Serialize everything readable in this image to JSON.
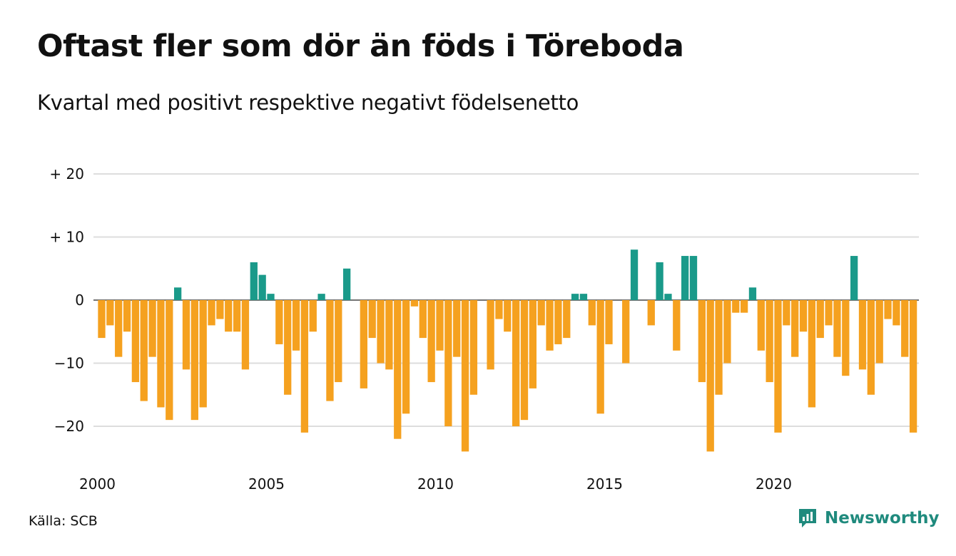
{
  "title": "Oftast fler som dör än föds i Töreboda",
  "subtitle": "Kvartal med positivt respektive negativt födelsenetto",
  "source": "Källa: SCB",
  "brand": "Newsworthy",
  "colors": {
    "positive": "#1a9a8a",
    "negative": "#f5a11f",
    "grid": "#dddddd",
    "brand": "#1f8a7d"
  },
  "chart_data": {
    "type": "bar",
    "title": "Oftast fler som dör än föds i Töreboda",
    "subtitle": "Kvartal med positivt respektive negativt födelsenetto",
    "xlabel": "",
    "ylabel": "",
    "x_start_year": 2000,
    "periods_per_year": 4,
    "x_tick_labels": [
      "2000",
      "2005",
      "2010",
      "2015",
      "2020"
    ],
    "x_tick_years": [
      2000,
      2005,
      2010,
      2015,
      2020
    ],
    "y_ticks": [
      20,
      10,
      0,
      -10,
      -20
    ],
    "y_tick_labels": [
      "+ 20",
      "+ 10",
      "0",
      "−10",
      "−20"
    ],
    "ylim": [
      -25,
      20
    ],
    "grid": true,
    "values": [
      -6,
      -4,
      -9,
      -5,
      -13,
      -16,
      -9,
      -17,
      -19,
      2,
      -11,
      -19,
      -17,
      -4,
      -3,
      -5,
      -5,
      -11,
      6,
      4,
      1,
      -7,
      -15,
      -8,
      -21,
      -5,
      1,
      -16,
      -13,
      5,
      0,
      -14,
      -6,
      -10,
      -11,
      -22,
      -18,
      -1,
      -6,
      -13,
      -8,
      -20,
      -9,
      -24,
      -15,
      0,
      -11,
      -3,
      -5,
      -20,
      -19,
      -14,
      -4,
      -8,
      -7,
      -6,
      1,
      1,
      -4,
      -18,
      -7,
      0,
      -10,
      8,
      0,
      -4,
      6,
      1,
      -8,
      7,
      7,
      -13,
      -24,
      -15,
      -10,
      -2,
      -2,
      2,
      -8,
      -13,
      -21,
      -4,
      -9,
      -5,
      -17,
      -6,
      -4,
      -9,
      -12,
      7,
      -11,
      -15,
      -10,
      -3,
      -4,
      -9,
      -21
    ]
  }
}
